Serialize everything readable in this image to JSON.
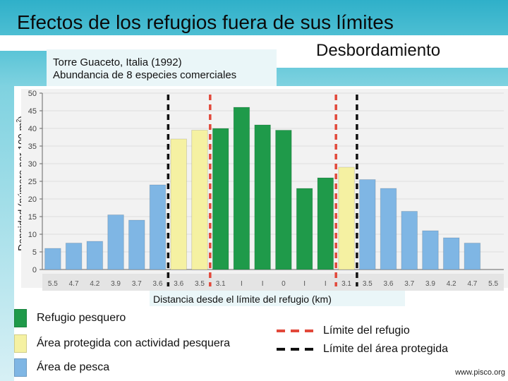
{
  "title": "Efectos de los refugios fuera de sus límites",
  "tag": "Desbordamiento",
  "subtitle_lines": [
    "Torre Guaceto, Italia  (1992)",
    "Abundancia de 8 especies comerciales"
  ],
  "footer": "www.pisco.org",
  "colors": {
    "refugio": "#1f9a4a",
    "protegida": "#f5f1a2",
    "pesca": "#7fb6e4",
    "refuge_line": "#e2483a",
    "protected_line": "#111111"
  },
  "legend": [
    {
      "label": "Refugio pesquero",
      "color": "#1f9a4a"
    },
    {
      "label": "Área protegida con actividad pesquera",
      "color": "#f5f1a2"
    },
    {
      "label": "Área de pesca",
      "color": "#7fb6e4"
    }
  ],
  "line_legend": [
    {
      "label": "Límite del refugio",
      "color": "#e2483a"
    },
    {
      "label": "Límite del área protegida",
      "color": "#111111"
    }
  ],
  "chart_data": {
    "type": "bar",
    "ylabel": "Densidad (número por 100 m",
    "ylabel_sup": "2",
    "ylabel_close": ")",
    "xlabel": "Distancia desde el límite del refugio (km)",
    "ylim": [
      0,
      50
    ],
    "yticks": [
      0,
      5,
      10,
      15,
      20,
      25,
      30,
      35,
      40,
      45,
      50
    ],
    "categories": [
      "5.5",
      "4.7",
      "4.2",
      "3.9",
      "3.7",
      "3.6",
      "3.6",
      "3.5",
      "3.1",
      "I",
      "I",
      "0",
      "I",
      "I",
      "3.1",
      "3.5",
      "3.6",
      "3.7",
      "3.9",
      "4.2",
      "4.7",
      "5.5"
    ],
    "values": [
      6,
      7.5,
      8,
      15.5,
      14,
      24,
      37,
      39.5,
      40,
      46,
      41,
      39.5,
      23,
      26,
      29,
      25.5,
      23,
      16.5,
      11,
      9,
      7.5,
      0
    ],
    "zones": [
      "pesca",
      "pesca",
      "pesca",
      "pesca",
      "pesca",
      "pesca",
      "protegida",
      "protegida",
      "refugio",
      "refugio",
      "refugio",
      "refugio",
      "refugio",
      "refugio",
      "protegida",
      "pesca",
      "pesca",
      "pesca",
      "pesca",
      "pesca",
      "pesca",
      "pesca"
    ],
    "protected_boundary_after_index": [
      5,
      14
    ],
    "refuge_boundary_after_index": [
      7,
      13
    ]
  }
}
